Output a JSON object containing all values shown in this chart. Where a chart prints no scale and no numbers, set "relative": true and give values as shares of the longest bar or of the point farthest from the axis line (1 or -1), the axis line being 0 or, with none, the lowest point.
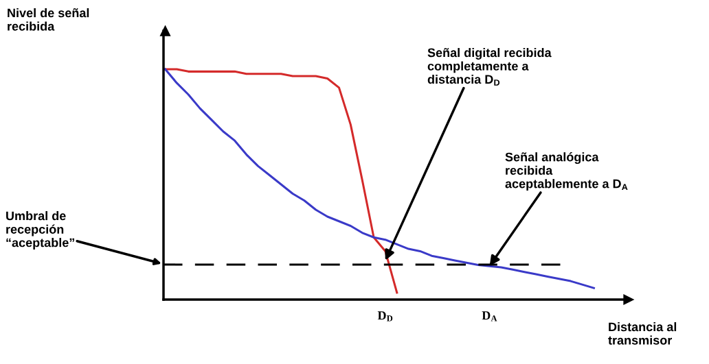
{
  "chart_data": {
    "type": "line",
    "relative": true,
    "xlabel": "Distancia al\ntransmisor",
    "categories": [
      null,
      null,
      null,
      null,
      null,
      null,
      null,
      null,
      null,
      null,
      null,
      null,
      null,
      null,
      null,
      null,
      null,
      null,
      null,
      "D$_{D}$",
      null,
      null,
      null,
      null,
      null,
      null,
      null,
      null,
      "D$_{A}$",
      null,
      null,
      null,
      null,
      null,
      null,
      null,
      null,
      null
    ],
    "series": [
      {
        "color": "#d42a2a",
        "values": [
          1.0,
          1.0,
          0.99,
          0.99,
          0.99,
          0.99,
          0.99,
          0.98,
          0.98,
          0.98,
          0.98,
          0.97,
          0.97,
          0.97,
          0.96,
          0.92,
          0.76,
          0.52,
          0.27,
          0.21,
          0.03,
          null,
          null,
          null,
          null,
          null,
          null,
          null,
          null,
          null,
          null,
          null,
          null,
          null,
          null,
          null,
          null,
          null
        ]
      },
      {
        "color": "#3a3ac8",
        "values": [
          1.0,
          0.94,
          0.89,
          0.83,
          0.78,
          0.73,
          0.69,
          0.63,
          0.58,
          0.54,
          0.5,
          0.46,
          0.43,
          0.39,
          0.36,
          0.34,
          0.32,
          0.29,
          0.27,
          0.26,
          0.24,
          0.22,
          0.21,
          0.19,
          0.18,
          0.17,
          0.16,
          0.15,
          0.145,
          0.14,
          0.13,
          0.12,
          0.11,
          0.1,
          0.09,
          0.08,
          0.065,
          0.05
        ]
      }
    ],
    "ref_lines": [
      {
        "axis": "y",
        "value": 0.152,
        "label": "Umbral de\nrecepción\n“aceptable”",
        "color": "#000000",
        "line_style": "dashed"
      }
    ],
    "annotations": [
      {
        "text": "Señal digital recibida\ncompletamente a\ndistancia D$_{D}$",
        "x": "D$_{D}$",
        "y": 0.17
      },
      {
        "text": "Señal analógica\nrecibida\naceptablemente a D$_{A}$",
        "x": "D$_{A}$",
        "y": 0.146
      },
      "Nivel de señal\nrecibida"
    ],
    "marker": "none",
    "line_style": "solid"
  }
}
